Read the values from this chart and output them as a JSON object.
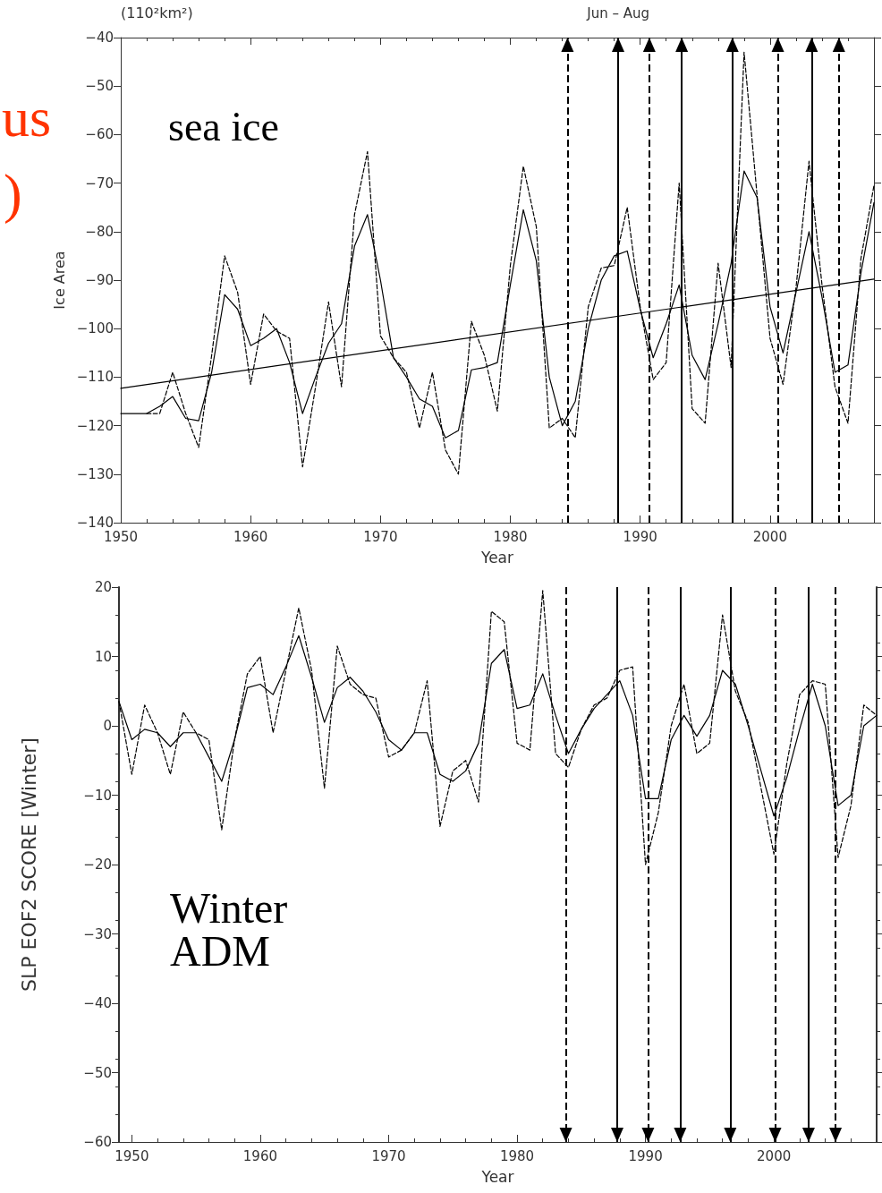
{
  "chart_data": [
    {
      "type": "line",
      "title": "Jun – Aug",
      "xlabel": "Year",
      "ylabel": "Ice Area",
      "annotations": [
        "(110²km²)",
        "sea ice",
        "us",
        ")"
      ],
      "xlim": [
        1950,
        2008
      ],
      "xticks": [
        1950,
        1960,
        1970,
        1980,
        1990,
        2000
      ],
      "ylim": [
        -140,
        -40
      ],
      "yticks": [
        -140,
        -130,
        -120,
        -110,
        -100,
        -90,
        -80,
        -70,
        -60,
        -50,
        -40
      ],
      "marker": "none",
      "series": [
        {
          "color": "#000000",
          "line_style": "solid",
          "x": [
            1950,
            1951,
            1952,
            1953,
            1954,
            1955,
            1956,
            1957,
            1958,
            1959,
            1960,
            1961,
            1962,
            1963,
            1964,
            1965,
            1966,
            1967,
            1968,
            1969,
            1970,
            1971,
            1972,
            1973,
            1974,
            1975,
            1976,
            1977,
            1978,
            1979,
            1980,
            1981,
            1982,
            1983,
            1984,
            1985,
            1986,
            1987,
            1988,
            1989,
            1990,
            1991,
            1992,
            1993,
            1994,
            1995,
            1996,
            1997,
            1998,
            1999,
            2000,
            2001,
            2002,
            2003,
            2004,
            2005,
            2006,
            2007,
            2008
          ],
          "values": [
            -117.5,
            -117.5,
            -117.5,
            -116,
            -114,
            -118.5,
            -119,
            -109,
            -93,
            -96,
            -103.5,
            -102,
            -100,
            -107,
            -117.5,
            -110,
            -103,
            -99,
            -83,
            -76.5,
            -90,
            -106,
            -110,
            -114.5,
            -116,
            -122.5,
            -121,
            -108.5,
            -108,
            -107,
            -91,
            -75.5,
            -86,
            -110,
            -120,
            -115,
            -100,
            -90,
            -85,
            -84,
            -96,
            -106,
            -99,
            -91,
            -105.5,
            -110.5,
            -99,
            -86.5,
            -67.5,
            -73,
            -95.5,
            -105,
            -92.5,
            -80,
            -93.5,
            -109,
            -107.5,
            -88.5,
            -74
          ]
        },
        {
          "color": "#000000",
          "line_style": "dashed",
          "x": [
            1952,
            1953,
            1954,
            1955,
            1956,
            1957,
            1958,
            1959,
            1960,
            1961,
            1962,
            1963,
            1964,
            1965,
            1966,
            1967,
            1968,
            1969,
            1970,
            1971,
            1972,
            1973,
            1974,
            1975,
            1976,
            1977,
            1978,
            1979,
            1980,
            1981,
            1982,
            1983,
            1984,
            1985,
            1986,
            1987,
            1988,
            1989,
            1990,
            1991,
            1992,
            1993,
            1994,
            1995,
            1996,
            1997,
            1998,
            1999,
            2000,
            2001,
            2002,
            2003,
            2004,
            2005,
            2006,
            2007,
            2008
          ],
          "values": [
            -117.5,
            -117.5,
            -109,
            -117.5,
            -124.5,
            -105.5,
            -85,
            -92.5,
            -111.5,
            -97,
            -100.5,
            -102,
            -128.5,
            -112,
            -94.5,
            -112,
            -76.5,
            -63.5,
            -101.5,
            -106,
            -109,
            -120.5,
            -109,
            -125,
            -130,
            -98.5,
            -105.5,
            -117,
            -87,
            -66.5,
            -79,
            -120.5,
            -118.5,
            -122.5,
            -95.5,
            -87.5,
            -87,
            -75,
            -95.5,
            -110.5,
            -107,
            -70,
            -116.5,
            -119.5,
            -86.5,
            -108,
            -43,
            -72.5,
            -102,
            -111.5,
            -91.5,
            -65.5,
            -91,
            -112,
            -119.5,
            -85.5,
            -70.5
          ]
        },
        {
          "type": "line",
          "color": "#000000",
          "line_style": "solid",
          "x": [
            1950,
            2008
          ],
          "values": [
            -112.3,
            -89.8
          ]
        }
      ],
      "ref_lines": [
        {
          "axis": "x",
          "value": 1984.4,
          "line_style": "dashed",
          "color": "#000000"
        },
        {
          "axis": "x",
          "value": 1988.3,
          "line_style": "solid",
          "color": "#000000"
        },
        {
          "axis": "x",
          "value": 1990.7,
          "line_style": "dashed",
          "color": "#000000"
        },
        {
          "axis": "x",
          "value": 1993.2,
          "line_style": "solid",
          "color": "#000000"
        },
        {
          "axis": "x",
          "value": 1997.1,
          "line_style": "solid",
          "color": "#000000"
        },
        {
          "axis": "x",
          "value": 2000.6,
          "line_style": "dashed",
          "color": "#000000"
        },
        {
          "axis": "x",
          "value": 2003.2,
          "line_style": "solid",
          "color": "#000000"
        },
        {
          "axis": "x",
          "value": 2005.3,
          "line_style": "dashed",
          "color": "#000000"
        }
      ]
    },
    {
      "type": "line",
      "xlabel": "Year",
      "ylabel": "SLP EOF2 SCORE [Winter]",
      "annotations": [
        "Winter ADM"
      ],
      "xlim": [
        1949,
        2008
      ],
      "xticks": [
        1950,
        1960,
        1970,
        1980,
        1990,
        2000
      ],
      "ylim": [
        -60,
        20
      ],
      "yticks": [
        -60,
        -50,
        -40,
        -30,
        -20,
        -10,
        0,
        10,
        20
      ],
      "marker": "none",
      "series": [
        {
          "color": "#000000",
          "line_style": "solid",
          "x": [
            1949,
            1950,
            1951,
            1952,
            1953,
            1954,
            1955,
            1956,
            1957,
            1958,
            1959,
            1960,
            1961,
            1962,
            1963,
            1964,
            1965,
            1966,
            1967,
            1968,
            1969,
            1970,
            1971,
            1972,
            1973,
            1974,
            1975,
            1976,
            1977,
            1978,
            1979,
            1980,
            1981,
            1982,
            1983,
            1984,
            1985,
            1986,
            1987,
            1988,
            1989,
            1990,
            1991,
            1992,
            1993,
            1994,
            1995,
            1996,
            1997,
            1998,
            1999,
            2000,
            2001,
            2002,
            2003,
            2004,
            2005,
            2006,
            2007,
            2008
          ],
          "values": [
            3.5,
            -2,
            -0.5,
            -1,
            -3,
            -1,
            -1,
            -4.5,
            -8,
            -2,
            5.5,
            6,
            4.5,
            8.5,
            13,
            7,
            0.5,
            5.5,
            7,
            5,
            2,
            -2,
            -3.5,
            -1,
            -1,
            -7,
            -8,
            -6.5,
            -2.5,
            9,
            11,
            2.5,
            3,
            7.5,
            1.5,
            -4,
            -0.5,
            2.5,
            4.5,
            6.5,
            1.5,
            -10.5,
            -10.5,
            -2,
            1.5,
            -1.5,
            1.5,
            8,
            6,
            0,
            -6.5,
            -13,
            -7.5,
            -0.5,
            6,
            0,
            -11.5,
            -10,
            0,
            1.5
          ]
        },
        {
          "color": "#000000",
          "line_style": "dashed",
          "x": [
            1949,
            1950,
            1951,
            1952,
            1953,
            1954,
            1955,
            1956,
            1957,
            1958,
            1959,
            1960,
            1961,
            1962,
            1963,
            1964,
            1965,
            1966,
            1967,
            1968,
            1969,
            1970,
            1971,
            1972,
            1973,
            1974,
            1975,
            1976,
            1977,
            1978,
            1979,
            1980,
            1981,
            1982,
            1983,
            1984,
            1985,
            1986,
            1987,
            1988,
            1989,
            1990,
            1991,
            1992,
            1993,
            1994,
            1995,
            1996,
            1997,
            1998,
            1999,
            2000,
            2001,
            2002,
            2003,
            2004,
            2005,
            2006,
            2007,
            2008
          ],
          "values": [
            3.5,
            -7,
            3,
            -1,
            -7,
            2,
            -1,
            -2,
            -15,
            -2,
            7.5,
            10,
            -1,
            8,
            17,
            8,
            -9,
            11.5,
            6,
            4.5,
            4,
            -4.5,
            -3.5,
            -1,
            6.5,
            -14.5,
            -6.5,
            -5,
            -11,
            16.5,
            15,
            -2.5,
            -3.5,
            19.5,
            -4,
            -6,
            -0.5,
            3,
            4,
            8,
            8.5,
            -20,
            -12.5,
            0,
            6,
            -4,
            -2.5,
            16,
            5,
            0.5,
            -9,
            -18.5,
            -5.5,
            4.5,
            6.5,
            6,
            -19,
            -11.5,
            3,
            1.5
          ]
        }
      ],
      "ref_lines": [
        {
          "axis": "x",
          "value": 1983.8,
          "line_style": "dashed",
          "color": "#000000"
        },
        {
          "axis": "x",
          "value": 1987.8,
          "line_style": "solid",
          "color": "#000000"
        },
        {
          "axis": "x",
          "value": 1990.2,
          "line_style": "dashed",
          "color": "#000000"
        },
        {
          "axis": "x",
          "value": 1992.7,
          "line_style": "solid",
          "color": "#000000"
        },
        {
          "axis": "x",
          "value": 1996.6,
          "line_style": "solid",
          "color": "#000000"
        },
        {
          "axis": "x",
          "value": 2000.1,
          "line_style": "dashed",
          "color": "#000000"
        },
        {
          "axis": "x",
          "value": 2002.7,
          "line_style": "solid",
          "color": "#000000"
        },
        {
          "axis": "x",
          "value": 2004.8,
          "line_style": "dashed",
          "color": "#000000"
        }
      ]
    }
  ]
}
